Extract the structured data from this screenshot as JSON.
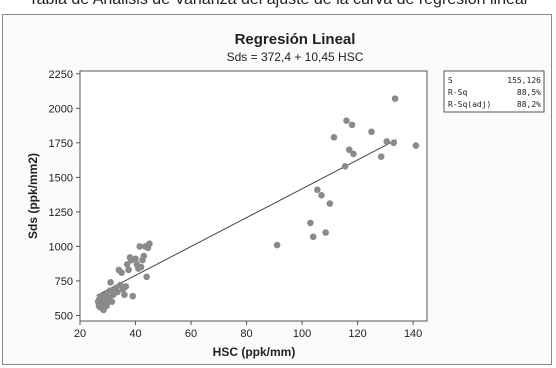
{
  "page": {
    "top_strip_text": "Tabla de Análisis de Varianza del ajuste de la curva de regresión lineal"
  },
  "stats_box": {
    "rows": [
      {
        "label": "S",
        "value": "155,126"
      },
      {
        "label": "R-Sq",
        "value": "88,5%"
      },
      {
        "label": "R-Sq(adj)",
        "value": "88,2%"
      }
    ]
  },
  "chart_data": {
    "type": "scatter",
    "title": "Regresión Lineal",
    "subtitle": "Sds = 372,4 + 10,45 HSC",
    "xlabel": "HSC (ppk/mm)",
    "ylabel": "Sds (ppk/mm2)",
    "xlim": [
      20,
      145
    ],
    "ylim": [
      460,
      2270
    ],
    "xticks": [
      20,
      40,
      60,
      80,
      100,
      120,
      140
    ],
    "yticks": [
      500,
      750,
      1000,
      1250,
      1500,
      1750,
      2000,
      2250
    ],
    "xtick_labels": [
      "20",
      "40",
      "60",
      "80",
      "100",
      "120",
      "140"
    ],
    "ytick_labels": [
      "500",
      "750",
      "1000",
      "1250",
      "1500",
      "1750",
      "2000",
      "2250"
    ],
    "fit_line": {
      "intercept": 372.4,
      "slope": 10.45,
      "x_range": [
        26,
        134
      ]
    },
    "grid": false,
    "colors": {
      "points": "#8a8a8a",
      "line": "#444444"
    },
    "points": [
      [
        26.5,
        600
      ],
      [
        26.8,
        570
      ],
      [
        27.0,
        620
      ],
      [
        27.2,
        560
      ],
      [
        27.5,
        590
      ],
      [
        27.8,
        640
      ],
      [
        28.0,
        610
      ],
      [
        28.2,
        580
      ],
      [
        28.5,
        540
      ],
      [
        28.7,
        630
      ],
      [
        29.0,
        600
      ],
      [
        29.3,
        650
      ],
      [
        29.6,
        570
      ],
      [
        30.0,
        620
      ],
      [
        30.2,
        600
      ],
      [
        30.5,
        630
      ],
      [
        30.8,
        680
      ],
      [
        31.0,
        740
      ],
      [
        31.5,
        600
      ],
      [
        32.0,
        650
      ],
      [
        32.5,
        680
      ],
      [
        33.0,
        700
      ],
      [
        33.5,
        670
      ],
      [
        34.0,
        830
      ],
      [
        34.5,
        720
      ],
      [
        35.0,
        810
      ],
      [
        35.5,
        690
      ],
      [
        36.0,
        650
      ],
      [
        36.5,
        710
      ],
      [
        37.0,
        870
      ],
      [
        37.5,
        830
      ],
      [
        38.0,
        920
      ],
      [
        38.5,
        900
      ],
      [
        39.0,
        640
      ],
      [
        40.0,
        910
      ],
      [
        40.5,
        870
      ],
      [
        41.0,
        840
      ],
      [
        41.5,
        1000
      ],
      [
        42.0,
        850
      ],
      [
        42.5,
        900
      ],
      [
        43.0,
        930
      ],
      [
        43.5,
        1000
      ],
      [
        44.0,
        780
      ],
      [
        44.5,
        990
      ],
      [
        45.0,
        1020
      ],
      [
        91.0,
        1010
      ],
      [
        103.0,
        1170
      ],
      [
        104.0,
        1070
      ],
      [
        105.5,
        1410
      ],
      [
        107.0,
        1370
      ],
      [
        108.5,
        1100
      ],
      [
        110.0,
        1310
      ],
      [
        111.5,
        1790
      ],
      [
        115.5,
        1580
      ],
      [
        116.0,
        1910
      ],
      [
        117.0,
        1700
      ],
      [
        118.0,
        1880
      ],
      [
        118.5,
        1670
      ],
      [
        125.0,
        1830
      ],
      [
        128.5,
        1650
      ],
      [
        130.5,
        1760
      ],
      [
        133.0,
        1750
      ],
      [
        133.5,
        2070
      ],
      [
        141.0,
        1730
      ]
    ]
  }
}
